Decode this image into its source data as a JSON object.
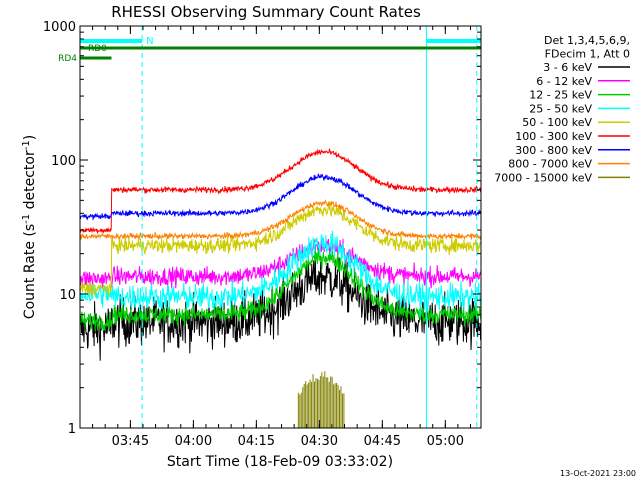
{
  "chart_data": {
    "type": "line",
    "title": "RHESSI Observing Summary Count Rates",
    "xlabel": "Start Time (18-Feb-09 03:33:02)",
    "ylabel_main": "Count Rate (s",
    "ylabel_sup1": "-1",
    "ylabel_mid": " detector",
    "ylabel_sup2": "-1",
    "ylabel_end": ")",
    "yscale": "log",
    "ylim": [
      1,
      1000
    ],
    "xlim_min": [
      0,
      95.5
    ],
    "x_unit": "minutes after 03:33:02",
    "x_ticks": [
      {
        "min": 12,
        "label": "03:45"
      },
      {
        "min": 27,
        "label": "04:00"
      },
      {
        "min": 42,
        "label": "04:15"
      },
      {
        "min": 57,
        "label": "04:30"
      },
      {
        "min": 72,
        "label": "04:45"
      },
      {
        "min": 87,
        "label": "05:00"
      }
    ],
    "y_ticks": [
      {
        "v": 1,
        "label": "1"
      },
      {
        "v": 10,
        "label": "10"
      },
      {
        "v": 100,
        "label": "100"
      },
      {
        "v": 1000,
        "label": "1000"
      }
    ],
    "legend_header": [
      "Det 1,3,4,5,6,9,",
      "FDecim 1, Att 0"
    ],
    "series": [
      {
        "name": "3 - 6 keV",
        "color": "#000000",
        "pre": 5.5,
        "base": 6.2,
        "peak": 13.5,
        "noise": 0.13
      },
      {
        "name": "6 - 12 keV",
        "color": "#ff00ff",
        "pre": 13,
        "base": 13.5,
        "peak": 23,
        "noise": 0.05
      },
      {
        "name": "12 - 25 keV",
        "color": "#00cc00",
        "pre": 6.3,
        "base": 7,
        "peak": 19,
        "noise": 0.05
      },
      {
        "name": "25 - 50 keV",
        "color": "#00ffff",
        "pre": 10,
        "base": 9.5,
        "peak": 24,
        "noise": 0.07
      },
      {
        "name": "50 - 100 keV",
        "color": "#cccc00",
        "pre": 11,
        "base": 23,
        "peak": 43,
        "noise": 0.04
      },
      {
        "name": "100 - 300 keV",
        "color": "#ff0000",
        "pre": 30,
        "base": 60,
        "peak": 115,
        "noise": 0.015
      },
      {
        "name": "300 - 800 keV",
        "color": "#0000ff",
        "pre": 38,
        "base": 40,
        "peak": 75,
        "noise": 0.015
      },
      {
        "name": "800 - 7000 keV",
        "color": "#ff8000",
        "pre": 27,
        "base": 27,
        "peak": 48,
        "noise": 0.015
      },
      {
        "name": "7000 - 15000 keV",
        "color": "#808000",
        "pre": 0,
        "base": 0,
        "peak": 0,
        "noise": 0
      }
    ],
    "peak_center_min": 58,
    "peak_width_min": 7.5,
    "rise_min": 7.5,
    "n_flags": [
      {
        "label": "N",
        "start": 0,
        "end": 14.8
      },
      {
        "label": "",
        "start": 82.5,
        "end": 95.5
      }
    ],
    "rd0_flag": {
      "label": "RD0",
      "start": 0,
      "end": 95.5
    },
    "rd4_flag": {
      "label": "RD4",
      "start": 0,
      "end": 7.5
    },
    "cyan_lines_solid": [
      0,
      82.5
    ],
    "cyan_lines_dashed": [
      14.8,
      94.5
    ],
    "olive_burst": {
      "start": 52,
      "end": 63,
      "low": 1,
      "high": 2.7
    },
    "grid": false,
    "legend_position": "right"
  },
  "footer": {
    "date": "13-Oct-2021 23:00"
  }
}
